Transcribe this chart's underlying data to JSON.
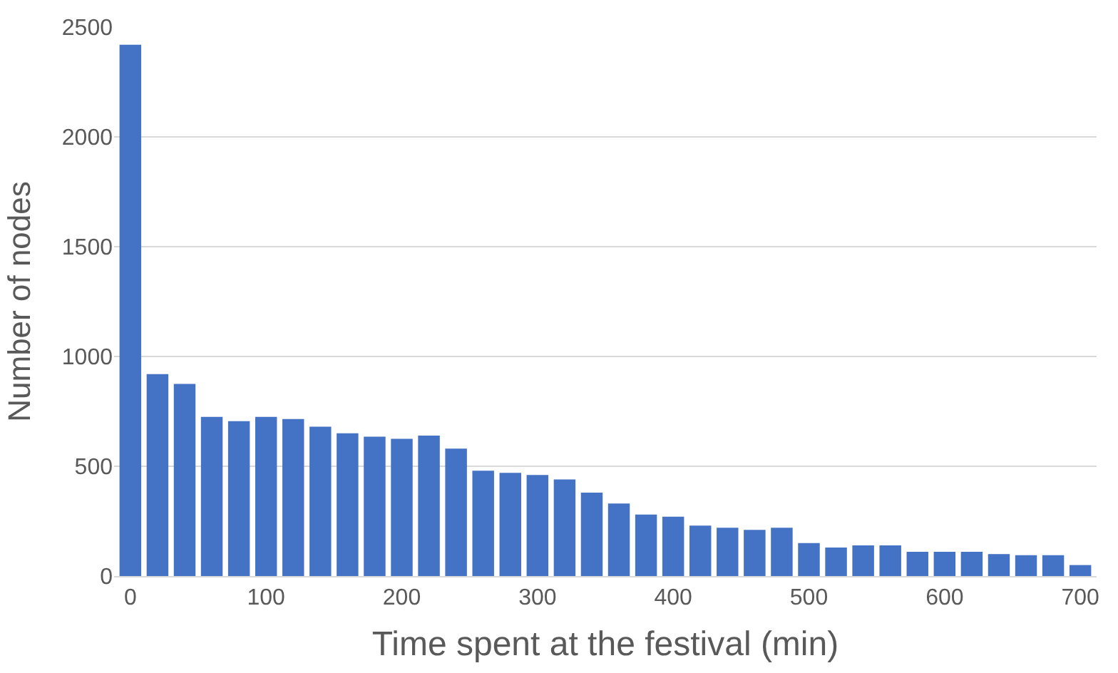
{
  "chart_data": {
    "type": "bar",
    "xlabel": "Time spent at the festival (min)",
    "ylabel": "Number of nodes",
    "x": [
      0,
      20,
      40,
      60,
      80,
      100,
      120,
      140,
      160,
      180,
      200,
      220,
      240,
      260,
      280,
      300,
      320,
      340,
      360,
      380,
      400,
      420,
      440,
      460,
      480,
      500,
      520,
      540,
      560,
      580,
      600,
      620,
      640,
      660,
      680,
      700
    ],
    "values": [
      2420,
      920,
      875,
      725,
      705,
      725,
      715,
      680,
      650,
      635,
      625,
      640,
      580,
      480,
      470,
      460,
      440,
      380,
      330,
      280,
      270,
      230,
      220,
      210,
      220,
      150,
      130,
      140,
      140,
      110,
      110,
      110,
      100,
      95,
      95,
      50
    ],
    "color": "#4472c4",
    "xlim": [
      -12,
      712
    ],
    "xticks": [
      0,
      100,
      200,
      300,
      400,
      500,
      600,
      700
    ],
    "ylim": [
      0,
      2500
    ],
    "yticks": [
      0,
      500,
      1000,
      1500,
      2000,
      2500
    ],
    "grid": "y",
    "legend": false
  }
}
